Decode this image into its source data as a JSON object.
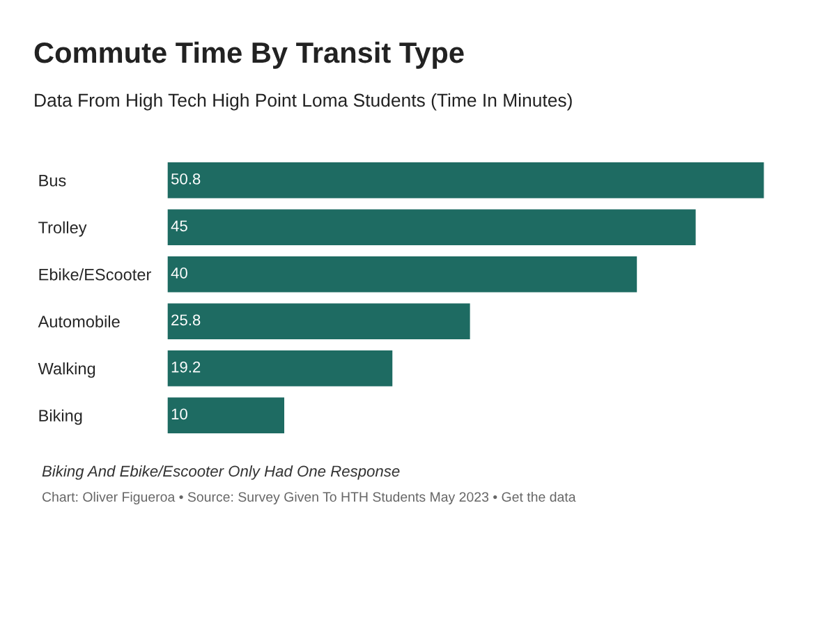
{
  "chart_data": {
    "type": "bar",
    "orientation": "horizontal",
    "title": "Commute Time By Transit Type",
    "subtitle": "Data From High Tech High Point Loma Students (Time In Minutes)",
    "categories": [
      "Bus",
      "Trolley",
      "Ebike/EScooter",
      "Automobile",
      "Walking",
      "Biking"
    ],
    "values": [
      50.8,
      45,
      40,
      25.8,
      19.2,
      10
    ],
    "color": "#1e6b62",
    "data_labels": true,
    "grid": false,
    "legend": false,
    "tick_labels": "y",
    "annotations": [
      "Biking And Ebike/Escooter Only Had One Response",
      "Chart: Oliver Figueroa • Source: Survey Given To HTH Students May 2023 • Get the data"
    ]
  }
}
